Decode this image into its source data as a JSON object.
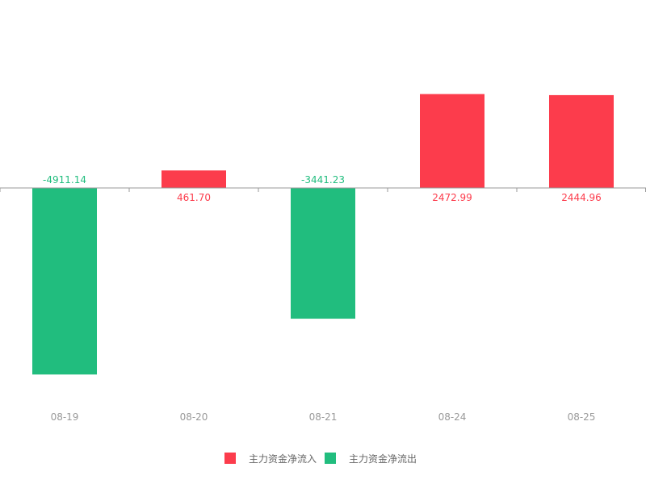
{
  "chart_data": {
    "type": "bar",
    "categories": [
      "08-19",
      "08-20",
      "08-21",
      "08-24",
      "08-25"
    ],
    "values": [
      -4911.14,
      461.7,
      -3441.23,
      2472.99,
      2444.96
    ],
    "value_labels": [
      "-4911.14",
      "461.70",
      "-3441.23",
      "2472.99",
      "2444.96"
    ],
    "ylim": [
      -5500,
      4100
    ],
    "grid": false,
    "legend_position": "bottom-center",
    "legend": [
      {
        "name": "主力资金净流入",
        "color": "#fc3c4c"
      },
      {
        "name": "主力资金净流出",
        "color": "#21bd7e"
      }
    ],
    "colors": {
      "positive": "#fc3c4c",
      "negative": "#21bd7e",
      "axis": "#999999",
      "tick_label": "#999999",
      "legend_text": "#666666"
    }
  }
}
